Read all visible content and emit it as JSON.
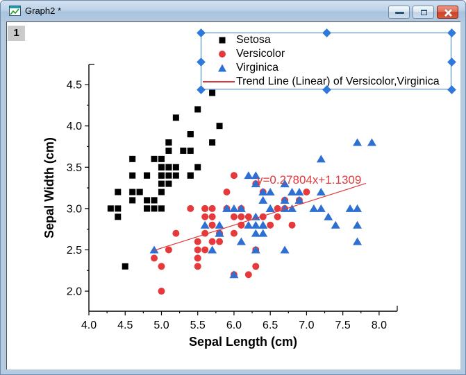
{
  "window": {
    "title": "Graph2 *",
    "layer_badge": "1",
    "icons": [
      "graph-window-icon",
      "minimize-icon",
      "restore-icon",
      "close-icon"
    ]
  },
  "colors": {
    "setosa": "#000000",
    "versicolor": "#e6393c",
    "virginica": "#2e6fd2",
    "trend": "#e0383a",
    "selection": "#2f78dc",
    "titlebar": "#bdd2e8",
    "close_button": "#cc4228"
  },
  "chart_data": {
    "type": "scatter",
    "xlabel": "Sepal Length (cm)",
    "ylabel": "Sepal Width (cm)",
    "xlim": [
      4.0,
      8.25
    ],
    "ylim": [
      1.757,
      4.744
    ],
    "x_major_ticks": [
      4.0,
      4.5,
      5.0,
      5.5,
      6.0,
      6.5,
      7.0,
      7.5,
      8.0
    ],
    "y_major_ticks": [
      2.0,
      2.5,
      3.0,
      3.5,
      4.0,
      4.5
    ],
    "minor_tick_step": 0.25,
    "grid": false,
    "legend_position": "top-right",
    "series": [
      {
        "name": "Setosa",
        "marker": "square",
        "color": "#000000",
        "points": [
          [
            5.1,
            3.5
          ],
          [
            4.9,
            3.0
          ],
          [
            4.7,
            3.2
          ],
          [
            4.6,
            3.1
          ],
          [
            5.0,
            3.6
          ],
          [
            5.4,
            3.9
          ],
          [
            4.6,
            3.4
          ],
          [
            5.0,
            3.4
          ],
          [
            4.4,
            2.9
          ],
          [
            4.9,
            3.1
          ],
          [
            5.4,
            3.7
          ],
          [
            4.8,
            3.4
          ],
          [
            4.8,
            3.0
          ],
          [
            4.3,
            3.0
          ],
          [
            5.8,
            4.0
          ],
          [
            5.7,
            4.4
          ],
          [
            5.4,
            3.9
          ],
          [
            5.1,
            3.5
          ],
          [
            5.7,
            3.8
          ],
          [
            5.1,
            3.8
          ],
          [
            5.4,
            3.4
          ],
          [
            5.1,
            3.7
          ],
          [
            4.6,
            3.6
          ],
          [
            5.1,
            3.3
          ],
          [
            4.8,
            3.4
          ],
          [
            5.0,
            3.0
          ],
          [
            5.0,
            3.4
          ],
          [
            5.2,
            3.5
          ],
          [
            5.2,
            3.4
          ],
          [
            4.7,
            3.2
          ],
          [
            4.8,
            3.1
          ],
          [
            5.4,
            3.4
          ],
          [
            5.2,
            4.1
          ],
          [
            5.5,
            4.2
          ],
          [
            4.9,
            3.1
          ],
          [
            5.0,
            3.2
          ],
          [
            5.5,
            3.5
          ],
          [
            4.9,
            3.6
          ],
          [
            4.4,
            3.0
          ],
          [
            5.1,
            3.4
          ],
          [
            5.0,
            3.5
          ],
          [
            4.5,
            2.3
          ],
          [
            4.4,
            3.2
          ],
          [
            5.0,
            3.5
          ],
          [
            5.1,
            3.8
          ],
          [
            4.8,
            3.0
          ],
          [
            5.1,
            3.8
          ],
          [
            4.6,
            3.2
          ],
          [
            5.3,
            3.7
          ],
          [
            5.0,
            3.3
          ]
        ]
      },
      {
        "name": "Versicolor",
        "marker": "circle",
        "color": "#e6393c",
        "points": [
          [
            7.0,
            3.2
          ],
          [
            6.4,
            3.2
          ],
          [
            6.9,
            3.1
          ],
          [
            5.5,
            2.3
          ],
          [
            6.5,
            2.8
          ],
          [
            5.7,
            2.8
          ],
          [
            6.3,
            3.3
          ],
          [
            4.9,
            2.4
          ],
          [
            6.6,
            2.9
          ],
          [
            5.2,
            2.7
          ],
          [
            5.0,
            2.0
          ],
          [
            5.9,
            3.0
          ],
          [
            6.0,
            2.2
          ],
          [
            6.1,
            2.9
          ],
          [
            5.6,
            2.9
          ],
          [
            6.7,
            3.1
          ],
          [
            5.6,
            3.0
          ],
          [
            5.8,
            2.7
          ],
          [
            6.2,
            2.2
          ],
          [
            5.6,
            2.5
          ],
          [
            5.9,
            3.2
          ],
          [
            6.1,
            2.8
          ],
          [
            6.3,
            2.5
          ],
          [
            6.1,
            2.8
          ],
          [
            6.4,
            2.9
          ],
          [
            6.6,
            3.0
          ],
          [
            6.8,
            2.8
          ],
          [
            6.7,
            3.0
          ],
          [
            6.0,
            2.9
          ],
          [
            5.7,
            2.6
          ],
          [
            5.5,
            2.4
          ],
          [
            5.5,
            2.4
          ],
          [
            5.8,
            2.7
          ],
          [
            6.0,
            2.7
          ],
          [
            5.4,
            3.0
          ],
          [
            6.0,
            3.4
          ],
          [
            6.7,
            3.1
          ],
          [
            6.3,
            2.3
          ],
          [
            5.6,
            3.0
          ],
          [
            5.5,
            2.5
          ],
          [
            5.5,
            2.6
          ],
          [
            6.1,
            3.0
          ],
          [
            5.8,
            2.6
          ],
          [
            5.0,
            2.3
          ],
          [
            5.6,
            2.7
          ],
          [
            5.7,
            3.0
          ],
          [
            5.7,
            2.9
          ],
          [
            6.2,
            2.9
          ],
          [
            5.1,
            2.5
          ],
          [
            5.7,
            2.8
          ]
        ]
      },
      {
        "name": "Virginica",
        "marker": "triangle-up",
        "color": "#2e6fd2",
        "points": [
          [
            6.3,
            3.3
          ],
          [
            5.8,
            2.7
          ],
          [
            7.1,
            3.0
          ],
          [
            6.3,
            2.9
          ],
          [
            6.5,
            3.0
          ],
          [
            7.6,
            3.0
          ],
          [
            4.9,
            2.5
          ],
          [
            7.3,
            2.9
          ],
          [
            6.7,
            2.5
          ],
          [
            7.2,
            3.6
          ],
          [
            6.5,
            3.2
          ],
          [
            6.4,
            2.7
          ],
          [
            6.8,
            3.0
          ],
          [
            5.7,
            2.5
          ],
          [
            5.8,
            2.8
          ],
          [
            6.4,
            3.2
          ],
          [
            6.5,
            3.0
          ],
          [
            7.7,
            3.8
          ],
          [
            7.7,
            2.6
          ],
          [
            6.0,
            2.2
          ],
          [
            6.9,
            3.2
          ],
          [
            5.6,
            2.8
          ],
          [
            7.7,
            2.8
          ],
          [
            6.3,
            2.7
          ],
          [
            6.7,
            3.3
          ],
          [
            7.2,
            3.2
          ],
          [
            6.2,
            2.8
          ],
          [
            6.1,
            3.0
          ],
          [
            6.4,
            2.8
          ],
          [
            7.2,
            3.0
          ],
          [
            7.4,
            2.8
          ],
          [
            7.9,
            3.8
          ],
          [
            6.4,
            2.8
          ],
          [
            6.3,
            2.8
          ],
          [
            6.1,
            2.6
          ],
          [
            7.7,
            3.0
          ],
          [
            6.3,
            3.4
          ],
          [
            6.4,
            3.1
          ],
          [
            6.0,
            3.0
          ],
          [
            6.9,
            3.1
          ],
          [
            6.7,
            3.1
          ],
          [
            6.9,
            3.1
          ],
          [
            5.8,
            2.7
          ],
          [
            6.8,
            3.2
          ],
          [
            6.7,
            3.3
          ],
          [
            6.7,
            3.0
          ],
          [
            6.3,
            2.5
          ],
          [
            6.5,
            3.0
          ],
          [
            6.2,
            3.4
          ],
          [
            5.9,
            3.0
          ]
        ]
      }
    ],
    "trend_line": {
      "label": "Trend Line (Linear) of Versicolor,Virginica",
      "equation": "y=0.27804x+1.1309",
      "slope": 0.27804,
      "intercept": 1.1309,
      "x_start": 4.9,
      "x_end": 7.82,
      "color": "#e0383a"
    },
    "legend_selected": true
  }
}
